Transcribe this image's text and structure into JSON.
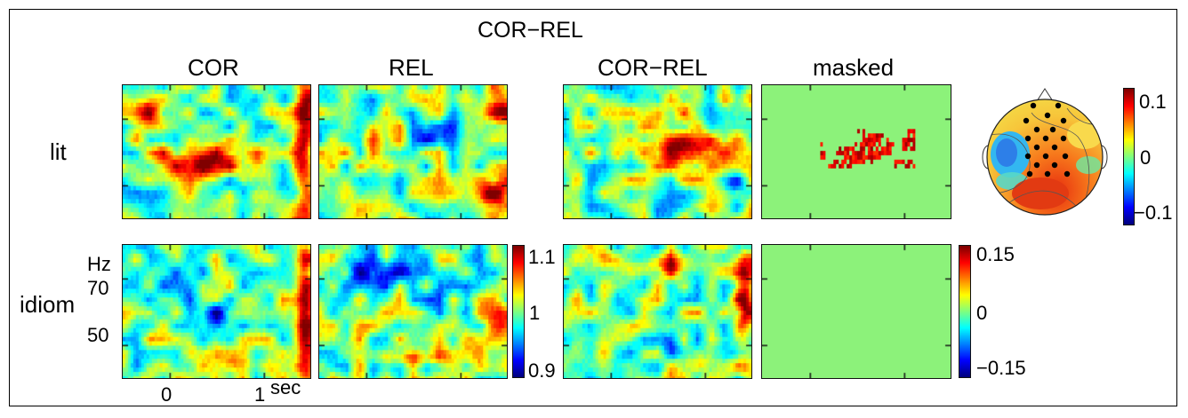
{
  "figure": {
    "group_title": "COR−REL",
    "columns": [
      "COR",
      "REL",
      "COR−REL",
      "masked"
    ],
    "rows": [
      "lit",
      "idiom"
    ],
    "y_axis": {
      "unit": "Hz",
      "ticks": [
        "70",
        "50"
      ]
    },
    "x_axis": {
      "ticks": [
        "0",
        "1"
      ],
      "unit": "sec"
    },
    "colorbar_power": {
      "max": "1.1",
      "mid": "1",
      "min": "0.9"
    },
    "colorbar_diff": {
      "max": "0.15",
      "mid": "0",
      "min": "−0.15"
    },
    "colorbar_topo": {
      "max": "0.1",
      "mid": "0",
      "min": "−0.1"
    },
    "colors": {
      "mask_green": "#8cf27a",
      "jet_high": "#800000",
      "jet_low": "#000080"
    }
  }
}
